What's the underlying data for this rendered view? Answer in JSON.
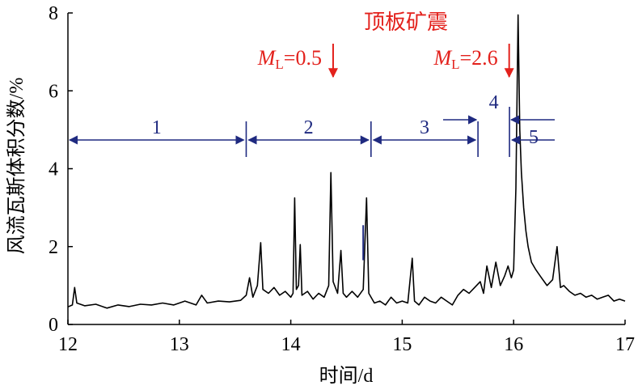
{
  "chart_data": {
    "type": "line",
    "xlabel": "时间/d",
    "ylabel": "风流瓦斯体积分数/%",
    "xlim": [
      12,
      17
    ],
    "ylim": [
      0,
      8
    ],
    "xticks": [
      12,
      13,
      14,
      15,
      16,
      17
    ],
    "yticks": [
      0,
      2,
      4,
      6,
      8
    ],
    "grid": false,
    "series_color": "#000000",
    "annotation_color": "#e3211c",
    "interval_color": "#1f2a80",
    "annotations": {
      "event_title": "顶板矿震",
      "events": [
        {
          "ml_prefix": "M",
          "ml_sub": "L",
          "ml_value": "=0.5",
          "x": 14.38
        },
        {
          "ml_prefix": "M",
          "ml_sub": "L",
          "ml_value": "=2.6",
          "x": 15.96
        }
      ]
    },
    "intervals": [
      {
        "label": "1",
        "x_start": 12.0,
        "x_end": 13.6
      },
      {
        "label": "2",
        "x_start": 13.6,
        "x_end": 14.72
      },
      {
        "label": "3",
        "x_start": 14.72,
        "x_end": 15.68
      },
      {
        "label": "4",
        "x_start": 15.68,
        "x_end": 15.97
      },
      {
        "label": "5",
        "x_start": 15.97,
        "x_end": 16.4
      }
    ],
    "series": [
      {
        "points": [
          [
            12.0,
            0.45
          ],
          [
            12.04,
            0.5
          ],
          [
            12.06,
            0.95
          ],
          [
            12.08,
            0.55
          ],
          [
            12.15,
            0.48
          ],
          [
            12.25,
            0.52
          ],
          [
            12.35,
            0.42
          ],
          [
            12.45,
            0.5
          ],
          [
            12.55,
            0.46
          ],
          [
            12.65,
            0.52
          ],
          [
            12.75,
            0.5
          ],
          [
            12.85,
            0.55
          ],
          [
            12.95,
            0.5
          ],
          [
            13.05,
            0.6
          ],
          [
            13.15,
            0.5
          ],
          [
            13.2,
            0.75
          ],
          [
            13.25,
            0.55
          ],
          [
            13.35,
            0.6
          ],
          [
            13.45,
            0.58
          ],
          [
            13.55,
            0.62
          ],
          [
            13.6,
            0.75
          ],
          [
            13.63,
            1.2
          ],
          [
            13.66,
            0.7
          ],
          [
            13.7,
            1.0
          ],
          [
            13.73,
            2.1
          ],
          [
            13.75,
            0.9
          ],
          [
            13.8,
            0.8
          ],
          [
            13.85,
            0.95
          ],
          [
            13.9,
            0.75
          ],
          [
            13.95,
            0.85
          ],
          [
            14.0,
            0.7
          ],
          [
            14.02,
            0.8
          ],
          [
            14.035,
            3.25
          ],
          [
            14.05,
            0.9
          ],
          [
            14.07,
            1.0
          ],
          [
            14.085,
            2.05
          ],
          [
            14.1,
            0.75
          ],
          [
            14.15,
            0.85
          ],
          [
            14.2,
            0.65
          ],
          [
            14.25,
            0.8
          ],
          [
            14.3,
            0.7
          ],
          [
            14.34,
            1.0
          ],
          [
            14.36,
            3.9
          ],
          [
            14.38,
            1.1
          ],
          [
            14.42,
            0.8
          ],
          [
            14.45,
            1.9
          ],
          [
            14.47,
            0.8
          ],
          [
            14.5,
            0.7
          ],
          [
            14.55,
            0.85
          ],
          [
            14.6,
            0.7
          ],
          [
            14.65,
            0.9
          ],
          [
            14.68,
            3.25
          ],
          [
            14.7,
            0.8
          ],
          [
            14.75,
            0.55
          ],
          [
            14.8,
            0.6
          ],
          [
            14.85,
            0.5
          ],
          [
            14.9,
            0.7
          ],
          [
            14.95,
            0.55
          ],
          [
            15.0,
            0.6
          ],
          [
            15.05,
            0.55
          ],
          [
            15.09,
            1.7
          ],
          [
            15.11,
            0.6
          ],
          [
            15.15,
            0.5
          ],
          [
            15.2,
            0.7
          ],
          [
            15.25,
            0.6
          ],
          [
            15.3,
            0.55
          ],
          [
            15.35,
            0.7
          ],
          [
            15.4,
            0.6
          ],
          [
            15.45,
            0.5
          ],
          [
            15.5,
            0.75
          ],
          [
            15.55,
            0.9
          ],
          [
            15.6,
            0.8
          ],
          [
            15.65,
            0.95
          ],
          [
            15.7,
            1.1
          ],
          [
            15.73,
            0.8
          ],
          [
            15.76,
            1.5
          ],
          [
            15.8,
            0.95
          ],
          [
            15.84,
            1.6
          ],
          [
            15.88,
            1.0
          ],
          [
            15.92,
            1.25
          ],
          [
            15.95,
            1.5
          ],
          [
            15.98,
            1.2
          ],
          [
            16.0,
            1.4
          ],
          [
            16.02,
            3.5
          ],
          [
            16.04,
            7.95
          ],
          [
            16.055,
            5.0
          ],
          [
            16.07,
            3.9
          ],
          [
            16.09,
            3.0
          ],
          [
            16.11,
            2.4
          ],
          [
            16.13,
            2.0
          ],
          [
            16.16,
            1.6
          ],
          [
            16.2,
            1.4
          ],
          [
            16.25,
            1.2
          ],
          [
            16.3,
            1.0
          ],
          [
            16.35,
            1.15
          ],
          [
            16.39,
            2.0
          ],
          [
            16.42,
            0.95
          ],
          [
            16.45,
            1.0
          ],
          [
            16.5,
            0.85
          ],
          [
            16.55,
            0.75
          ],
          [
            16.6,
            0.8
          ],
          [
            16.65,
            0.7
          ],
          [
            16.7,
            0.75
          ],
          [
            16.75,
            0.65
          ],
          [
            16.8,
            0.7
          ],
          [
            16.85,
            0.75
          ],
          [
            16.9,
            0.6
          ],
          [
            16.95,
            0.65
          ],
          [
            17.0,
            0.6
          ]
        ]
      }
    ]
  }
}
